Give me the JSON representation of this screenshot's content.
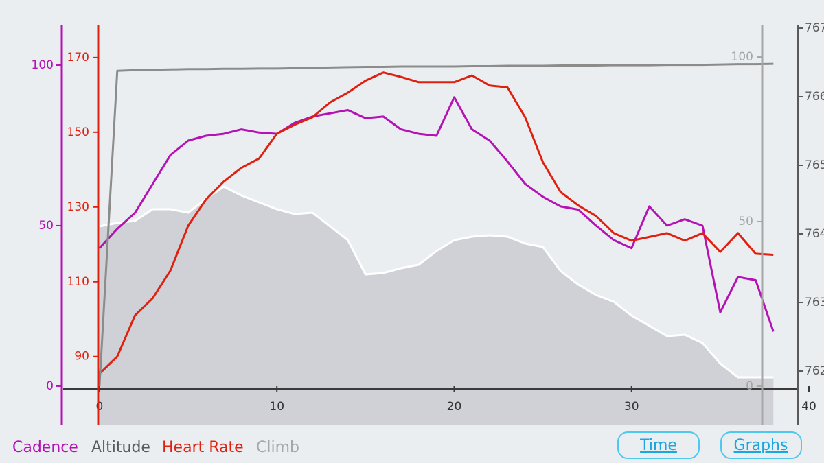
{
  "chart_data": {
    "type": "line",
    "x": [
      0,
      1,
      2,
      3,
      4,
      5,
      6,
      7,
      8,
      9,
      10,
      11,
      12,
      13,
      14,
      15,
      16,
      17,
      18,
      19,
      20,
      21,
      22,
      23,
      24,
      25,
      26,
      27,
      28,
      29,
      30,
      31,
      32,
      33,
      34,
      35,
      36,
      37,
      38
    ],
    "xlim": [
      -2.05,
      40
    ],
    "xticks": [
      0,
      10,
      20,
      30,
      40
    ],
    "ylim": [
      -12.2,
      112.4
    ],
    "yticks": [
      0,
      50,
      100
    ],
    "y2lim": [
      71.6,
      178.6
    ],
    "y2ticks": [
      90,
      110,
      130,
      150,
      170
    ],
    "y3lim": [
      761.21,
      767.04
    ],
    "y3ticks": [
      762,
      763,
      764,
      765,
      766,
      767
    ],
    "y4lim": [
      -11.9,
      109.6
    ],
    "y4ticks": [
      0,
      50,
      100
    ],
    "series": [
      {
        "name": "Cadence",
        "color": "#b412b4",
        "axis": "y",
        "values": [
          43,
          49,
          54,
          63,
          72,
          76.5,
          78,
          78.6,
          80,
          79,
          78.6,
          82,
          84,
          85,
          86,
          83.5,
          84,
          80,
          78.6,
          78,
          90,
          80,
          76.5,
          70,
          63,
          59,
          56,
          55,
          50,
          45.5,
          43,
          56,
          50,
          52,
          50,
          23,
          34,
          33,
          17
        ]
      },
      {
        "name": "Altitude",
        "color": "#5a5a5a",
        "axis": "y3",
        "area": true,
        "fill": "#cfd1d7",
        "values": [
          764.11,
          764.16,
          764.19,
          764.36,
          764.36,
          764.31,
          764.51,
          764.69,
          764.56,
          764.46,
          764.36,
          764.29,
          764.31,
          764.11,
          763.91,
          763.41,
          763.43,
          763.5,
          763.55,
          763.75,
          763.91,
          763.96,
          763.98,
          763.96,
          763.86,
          763.81,
          763.46,
          763.26,
          763.11,
          763.01,
          762.81,
          762.66,
          762.51,
          762.53,
          762.41,
          762.11,
          761.91,
          761.91,
          761.91
        ]
      },
      {
        "name": "Heart Rate",
        "color": "#e0200f",
        "axis": "y2",
        "values": [
          85.4,
          90,
          101,
          105.6,
          113,
          125,
          132,
          136.8,
          140.5,
          143,
          149.6,
          152,
          154,
          158,
          160.6,
          163.8,
          166,
          164.8,
          163.4,
          163.4,
          163.4,
          165.2,
          162.5,
          162,
          154,
          142,
          134,
          130.4,
          127.6,
          123,
          121,
          122,
          123,
          121,
          123,
          118,
          123,
          117.5,
          117.2
        ]
      },
      {
        "name": "Climb",
        "color": "#a6a6a6",
        "line_color": "#8c8c8c",
        "axis": "y4",
        "values": [
          0,
          95.8,
          96,
          96.1,
          96.2,
          96.3,
          96.3,
          96.4,
          96.4,
          96.5,
          96.5,
          96.6,
          96.7,
          96.8,
          96.9,
          97,
          97,
          97.1,
          97.1,
          97.1,
          97.1,
          97.2,
          97.2,
          97.3,
          97.3,
          97.3,
          97.4,
          97.4,
          97.4,
          97.5,
          97.5,
          97.5,
          97.6,
          97.6,
          97.6,
          97.7,
          97.8,
          97.8,
          97.9
        ]
      }
    ]
  },
  "buttons": [
    "Time",
    "Graphs"
  ]
}
